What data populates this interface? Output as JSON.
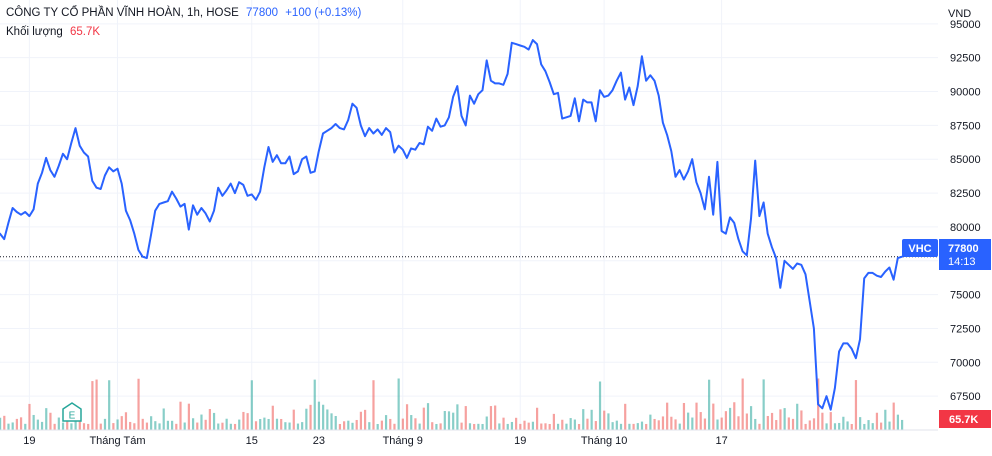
{
  "header": {
    "symbol_name": "CÔNG TY CỔ PHẦN VĨNH HOÀN",
    "interval": "1h",
    "exchange": "HOSE",
    "last_price": "77800",
    "change": "+100 (+0.13%)",
    "volume_label": "Khối lượng",
    "volume_value": "65.7K"
  },
  "price_tag": {
    "ticker": "VHC",
    "price": "77800",
    "countdown": "14:13"
  },
  "volume_tag": "65.7K",
  "event_marker": "E",
  "colors": {
    "line": "#2962ff",
    "up_volume": "#26a69a",
    "down_volume": "#ef5350",
    "grid": "#f0f3fa",
    "text": "#131722",
    "axis_text": "#787b86",
    "tag_red": "#f23645"
  },
  "chart_data": {
    "type": "line",
    "currency": "VND",
    "ylim": [
      65000,
      95800
    ],
    "y_ticks": [
      67500,
      70000,
      72500,
      75000,
      77500,
      80000,
      82500,
      85000,
      87500,
      90000,
      92500,
      95000
    ],
    "y_tick_labels": [
      "67500",
      "70000",
      "72500",
      "75000",
      "77500",
      "80000",
      "82500",
      "85000",
      "87500",
      "90000",
      "92500",
      "95000"
    ],
    "x_tick_labels": [
      "19",
      "Tháng Tám",
      "15",
      "23",
      "Tháng 9",
      "19",
      "Tháng 10",
      "17"
    ],
    "x_tick_bar_index": [
      7,
      28,
      60,
      76,
      96,
      124,
      144,
      172
    ],
    "last_price_line": 77800,
    "series": [
      {
        "values": [
          79500,
          79100,
          80300,
          81400,
          81100,
          80900,
          81100,
          80800,
          81300,
          83200,
          84000,
          85100,
          84200,
          83700,
          84500,
          85400,
          85000,
          86200,
          87300,
          86000,
          85500,
          85200,
          83400,
          82900,
          82800,
          83800,
          84400,
          84100,
          84300,
          83200,
          81200,
          80500,
          79500,
          78300,
          77800,
          77700,
          79400,
          81200,
          81700,
          81800,
          81900,
          82600,
          82100,
          81500,
          81700,
          79800,
          81600,
          80900,
          81400,
          81000,
          80400,
          81200,
          82900,
          82300,
          82700,
          83200,
          82500,
          83300,
          83100,
          82300,
          82400,
          82000,
          82600,
          84400,
          85900,
          84800,
          85300,
          84700,
          84700,
          85200,
          83900,
          84100,
          85000,
          85200,
          84000,
          84100,
          85600,
          86900,
          87100,
          87300,
          87600,
          87300,
          87200,
          87900,
          89100,
          88800,
          87500,
          86700,
          87300,
          86900,
          87200,
          86800,
          87300,
          87000,
          85500,
          86000,
          85700,
          85100,
          85800,
          85700,
          86200,
          86100,
          87400,
          87100,
          88000,
          87400,
          87500,
          88100,
          89600,
          90400,
          88200,
          87500,
          89700,
          89100,
          89800,
          90100,
          92300,
          90800,
          90600,
          90600,
          90500,
          91300,
          93600,
          93500,
          93400,
          93300,
          93100,
          93800,
          93500,
          92000,
          91500,
          90700,
          89800,
          89900,
          88000,
          88100,
          88200,
          89500,
          87800,
          89400,
          89200,
          89200,
          87800,
          90100,
          89600,
          89700,
          90100,
          90800,
          91400,
          89400,
          90300,
          89000,
          90400,
          92600,
          90800,
          91200,
          90800,
          89700,
          87700,
          86800,
          85600,
          83700,
          84200,
          83500,
          84100,
          85000,
          83300,
          82500,
          81300,
          83700,
          80900,
          84800,
          79700,
          79500,
          80700,
          80300,
          79100,
          78200,
          77900,
          80600,
          84900,
          80800,
          81800,
          79500,
          78500,
          77700,
          75500,
          77500,
          77200,
          76900,
          77300,
          77200,
          76500,
          74500,
          72500,
          66900,
          66600,
          67500,
          66500,
          68100,
          70800,
          71400,
          71400,
          71000,
          70300,
          71700,
          76200,
          76600,
          76600,
          76400,
          76300,
          76700,
          77000,
          76100,
          77700,
          77800
        ]
      }
    ]
  }
}
